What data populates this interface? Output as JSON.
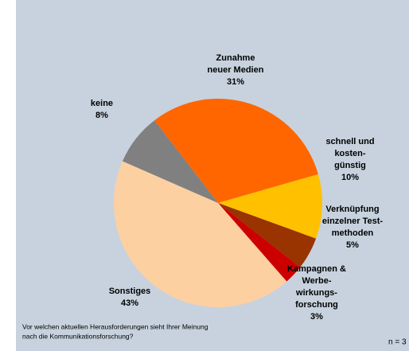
{
  "chart_data": {
    "type": "pie",
    "categories": [
      [
        "Zunahme",
        "neuer Medien"
      ],
      [
        "schnell und",
        "kosten-",
        "günstig"
      ],
      [
        "Verknüpfung",
        "einzelner Test-",
        "methoden"
      ],
      [
        "Kampagnen &",
        "Werbe-",
        "wirkungs-",
        "forschung"
      ],
      [
        "Sonstiges"
      ],
      [
        "keine"
      ]
    ],
    "values": [
      31,
      10,
      5,
      3,
      43,
      8
    ],
    "value_labels": [
      "31%",
      "10%",
      "5%",
      "3%",
      "43%",
      "8%"
    ],
    "colors": [
      "#ff6600",
      "#ffc000",
      "#993300",
      "#cc0000",
      "#fdd0a2",
      "#808080"
    ],
    "footnote": [
      "Vor welchen aktuellen Herausforderungen sieht Ihrer Meinung",
      "nach die Kommunikationsforschung?"
    ],
    "note": "n = 3"
  }
}
